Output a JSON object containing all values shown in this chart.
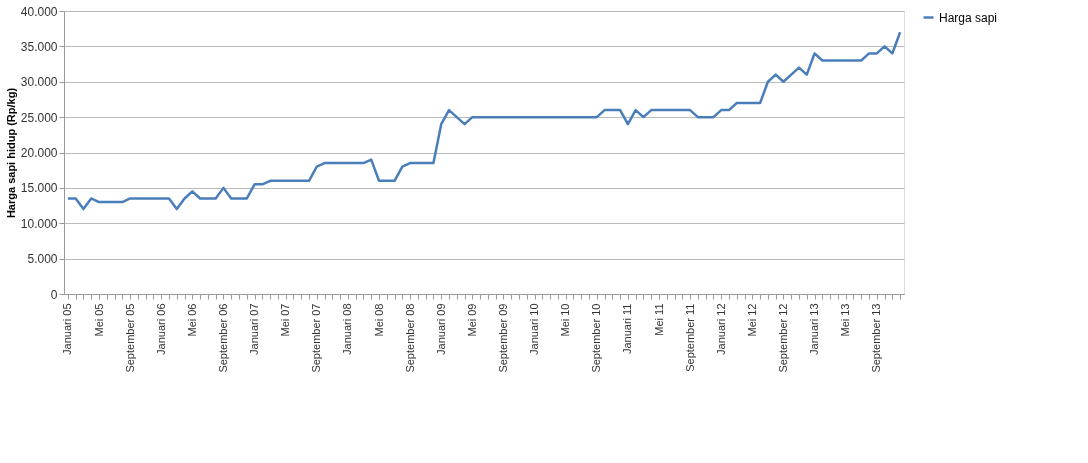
{
  "chart_data": {
    "type": "line",
    "ylabel": "Harga sapi hidup (Rp/kg)",
    "categories": [
      "Januari 05",
      null,
      null,
      null,
      "Mei 05",
      null,
      null,
      null,
      "September 05",
      null,
      null,
      null,
      "Januari 06",
      null,
      null,
      null,
      "Mei 06",
      null,
      null,
      null,
      "September 06",
      null,
      null,
      null,
      "Januari 07",
      null,
      null,
      null,
      "Mei 07",
      null,
      null,
      null,
      "September 07",
      null,
      null,
      null,
      "Januari 08",
      null,
      null,
      null,
      "Mei 08",
      null,
      null,
      null,
      "September 08",
      null,
      null,
      null,
      "Januari 09",
      null,
      null,
      null,
      "Mei 09",
      null,
      null,
      null,
      "September 09",
      null,
      null,
      null,
      "Januari 10",
      null,
      null,
      null,
      "Mei 10",
      null,
      null,
      null,
      "September 10",
      null,
      null,
      null,
      "Januari 11",
      null,
      null,
      null,
      "Mei 11",
      null,
      null,
      null,
      "September 11",
      null,
      null,
      null,
      "Januari 12",
      null,
      null,
      null,
      "Mei 12",
      null,
      null,
      null,
      "September 12",
      null,
      null,
      null,
      "Januari 13",
      null,
      null,
      null,
      "Mei 13",
      null,
      null,
      null,
      "September 13",
      null,
      null,
      null
    ],
    "series": [
      {
        "name": "Harga sapi",
        "color": "#4a7ebb",
        "values": [
          13500,
          13500,
          12000,
          13500,
          13000,
          13000,
          13000,
          13000,
          13500,
          13500,
          13500,
          13500,
          13500,
          13500,
          12000,
          13500,
          14500,
          13500,
          13500,
          13500,
          15000,
          13500,
          13500,
          13500,
          15500,
          15500,
          16000,
          16000,
          16000,
          16000,
          16000,
          16000,
          18000,
          18500,
          18500,
          18500,
          18500,
          18500,
          18500,
          19000,
          16000,
          16000,
          16000,
          18000,
          18500,
          18500,
          18500,
          18500,
          24000,
          26000,
          25000,
          24000,
          25000,
          25000,
          25000,
          25000,
          25000,
          25000,
          25000,
          25000,
          25000,
          25000,
          25000,
          25000,
          25000,
          25000,
          25000,
          25000,
          25000,
          26000,
          26000,
          26000,
          24000,
          26000,
          25000,
          26000,
          26000,
          26000,
          26000,
          26000,
          26000,
          25000,
          25000,
          25000,
          26000,
          26000,
          27000,
          27000,
          27000,
          27000,
          30000,
          31000,
          30000,
          31000,
          32000,
          31000,
          34000,
          33000,
          33000,
          33000,
          33000,
          33000,
          33000,
          34000,
          34000,
          35000,
          34000,
          37000
        ]
      }
    ],
    "ylim": [
      0,
      40000
    ],
    "yticks": [
      0,
      {
        "value": 5000,
        "label": "5.000"
      },
      {
        "value": 10000,
        "label": "10.000"
      },
      {
        "value": 15000,
        "label": "15.000"
      },
      {
        "value": 20000,
        "label": "20.000"
      },
      {
        "value": 25000,
        "label": "25.000"
      },
      {
        "value": 30000,
        "label": "30.000"
      },
      {
        "value": 35000,
        "label": "35.000"
      },
      {
        "value": 40000,
        "label": "40.000"
      }
    ],
    "grid": "y",
    "line_style": "solid",
    "legend": "right"
  }
}
